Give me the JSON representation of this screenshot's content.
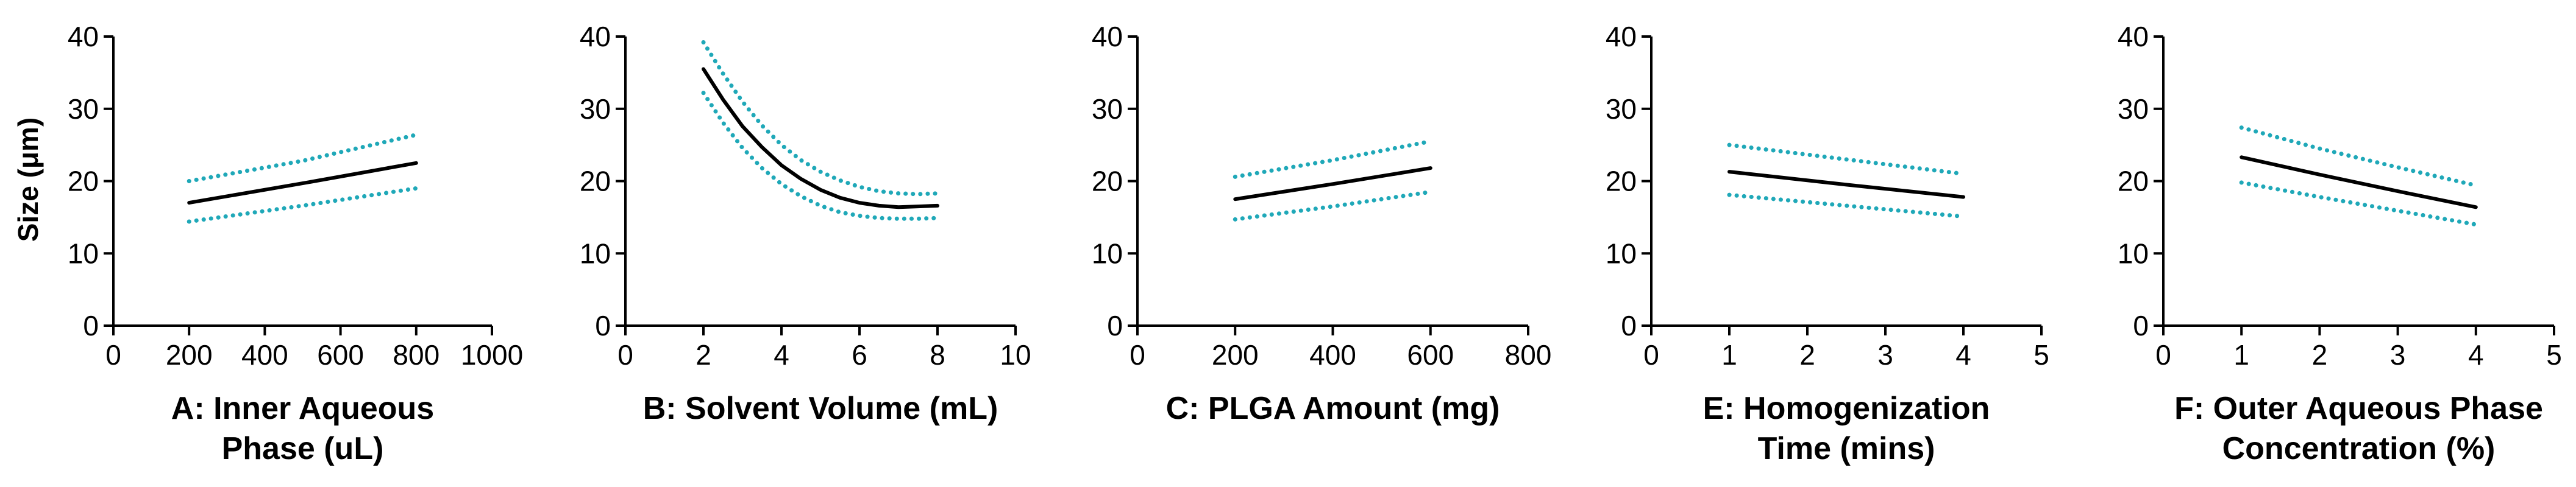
{
  "colors": {
    "fit": "#000000",
    "ci": "#1fa8b8",
    "axis": "#000000",
    "background": "#ffffff"
  },
  "y_axis_title": "Size (μm)",
  "chart_data": [
    {
      "type": "line",
      "title": "",
      "xlabel": [
        "A: Inner Aqueous",
        "Phase (uL)"
      ],
      "ylabel": "Size (μm)",
      "xlim": [
        0,
        1000
      ],
      "ylim": [
        0,
        40
      ],
      "xticks": [
        0,
        200,
        400,
        600,
        800,
        1000
      ],
      "yticks": [
        0,
        10,
        20,
        30,
        40
      ],
      "series": [
        {
          "name": "fit",
          "style": "solid",
          "x": [
            200,
            500,
            800
          ],
          "y": [
            17.0,
            19.7,
            22.5
          ]
        },
        {
          "name": "upper",
          "style": "dotted",
          "x": [
            200,
            500,
            800
          ],
          "y": [
            20.0,
            22.8,
            26.4
          ]
        },
        {
          "name": "lower",
          "style": "dotted",
          "x": [
            200,
            500,
            800
          ],
          "y": [
            14.4,
            16.6,
            19.0
          ]
        }
      ]
    },
    {
      "type": "line",
      "title": "",
      "xlabel": [
        "B: Solvent Volume (mL)"
      ],
      "ylabel": "",
      "xlim": [
        0,
        10
      ],
      "ylim": [
        0,
        40
      ],
      "xticks": [
        0,
        2,
        4,
        6,
        8,
        10
      ],
      "yticks": [
        0,
        10,
        20,
        30,
        40
      ],
      "series": [
        {
          "name": "fit",
          "style": "solid",
          "x": [
            2,
            2.5,
            3,
            3.5,
            4,
            4.5,
            5,
            5.5,
            6,
            6.5,
            7,
            7.5,
            8
          ],
          "y": [
            35.5,
            31.3,
            27.6,
            24.7,
            22.2,
            20.3,
            18.8,
            17.7,
            17.0,
            16.6,
            16.4,
            16.5,
            16.6
          ]
        },
        {
          "name": "upper",
          "style": "dotted",
          "x": [
            2,
            2.5,
            3,
            3.5,
            4,
            4.5,
            5,
            5.5,
            6,
            6.5,
            7,
            7.5,
            8
          ],
          "y": [
            39.2,
            34.9,
            31.0,
            27.7,
            25.0,
            22.9,
            21.3,
            20.1,
            19.2,
            18.6,
            18.3,
            18.2,
            18.3
          ]
        },
        {
          "name": "lower",
          "style": "dotted",
          "x": [
            2,
            2.5,
            3,
            3.5,
            4,
            4.5,
            5,
            5.5,
            6,
            6.5,
            7,
            7.5,
            8
          ],
          "y": [
            32.2,
            28.1,
            24.6,
            21.8,
            19.6,
            17.9,
            16.6,
            15.7,
            15.2,
            14.9,
            14.8,
            14.8,
            14.9
          ]
        }
      ]
    },
    {
      "type": "line",
      "title": "",
      "xlabel": [
        "C: PLGA Amount (mg)"
      ],
      "ylabel": "",
      "xlim": [
        0,
        800
      ],
      "ylim": [
        0,
        40
      ],
      "xticks": [
        0,
        200,
        400,
        600,
        800
      ],
      "yticks": [
        0,
        10,
        20,
        30,
        40
      ],
      "series": [
        {
          "name": "fit",
          "style": "solid",
          "x": [
            200,
            400,
            600
          ],
          "y": [
            17.5,
            19.6,
            21.8
          ]
        },
        {
          "name": "upper",
          "style": "dotted",
          "x": [
            200,
            400,
            600
          ],
          "y": [
            20.6,
            22.9,
            25.5
          ]
        },
        {
          "name": "lower",
          "style": "dotted",
          "x": [
            200,
            400,
            600
          ],
          "y": [
            14.7,
            16.5,
            18.5
          ]
        }
      ]
    },
    {
      "type": "line",
      "title": "",
      "xlabel": [
        "E: Homogenization",
        "Time (mins)"
      ],
      "ylabel": "",
      "xlim": [
        0,
        5
      ],
      "ylim": [
        0,
        40
      ],
      "xticks": [
        0,
        1,
        2,
        3,
        4,
        5
      ],
      "yticks": [
        0,
        10,
        20,
        30,
        40
      ],
      "series": [
        {
          "name": "fit",
          "style": "solid",
          "x": [
            1,
            2.5,
            4
          ],
          "y": [
            21.3,
            19.5,
            17.8
          ]
        },
        {
          "name": "upper",
          "style": "dotted",
          "x": [
            1,
            2.5,
            4
          ],
          "y": [
            25.0,
            23.0,
            21.0
          ]
        },
        {
          "name": "lower",
          "style": "dotted",
          "x": [
            1,
            2.5,
            4
          ],
          "y": [
            18.1,
            16.6,
            15.1
          ]
        }
      ]
    },
    {
      "type": "line",
      "title": "",
      "xlabel": [
        "F: Outer Aqueous Phase",
        "Concentration (%)"
      ],
      "ylabel": "",
      "xlim": [
        0,
        5
      ],
      "ylim": [
        0,
        40
      ],
      "xticks": [
        0,
        1,
        2,
        3,
        4,
        5
      ],
      "yticks": [
        0,
        10,
        20,
        30,
        40
      ],
      "series": [
        {
          "name": "fit",
          "style": "solid",
          "x": [
            1,
            2,
            3,
            4
          ],
          "y": [
            23.3,
            20.9,
            18.6,
            16.4
          ]
        },
        {
          "name": "upper",
          "style": "dotted",
          "x": [
            1,
            2,
            3,
            4
          ],
          "y": [
            27.4,
            24.5,
            21.9,
            19.4
          ]
        },
        {
          "name": "lower",
          "style": "dotted",
          "x": [
            1,
            2,
            3,
            4
          ],
          "y": [
            19.8,
            17.8,
            15.9,
            14.0
          ]
        }
      ]
    }
  ]
}
